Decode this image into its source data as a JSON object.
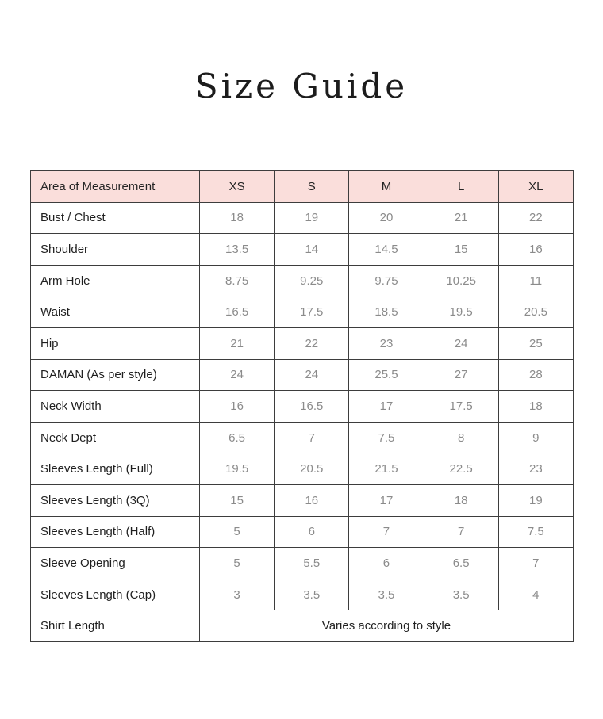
{
  "page": {
    "title": "Size Guide"
  },
  "colors": {
    "header_bg": "#fadedb",
    "border": "#3d3d3d",
    "label_text": "#1f1f1f",
    "value_text": "#8b8b8b",
    "background": "#ffffff"
  },
  "table": {
    "header": {
      "area_label": "Area of Measurement",
      "sizes": [
        "XS",
        "S",
        "M",
        "L",
        "XL"
      ]
    },
    "rows": [
      {
        "label": "Bust / Chest",
        "values": [
          "18",
          "19",
          "20",
          "21",
          "22"
        ]
      },
      {
        "label": "Shoulder",
        "values": [
          "13.5",
          "14",
          "14.5",
          "15",
          "16"
        ]
      },
      {
        "label": "Arm Hole",
        "values": [
          "8.75",
          "9.25",
          "9.75",
          "10.25",
          "11"
        ]
      },
      {
        "label": "Waist",
        "values": [
          "16.5",
          "17.5",
          "18.5",
          "19.5",
          "20.5"
        ]
      },
      {
        "label": "Hip",
        "values": [
          "21",
          "22",
          "23",
          "24",
          "25"
        ]
      },
      {
        "label": "DAMAN (As per style)",
        "values": [
          "24",
          "24",
          "25.5",
          "27",
          "28"
        ]
      },
      {
        "label": "Neck Width",
        "values": [
          "16",
          "16.5",
          "17",
          "17.5",
          "18"
        ]
      },
      {
        "label": "Neck Dept",
        "values": [
          "6.5",
          "7",
          "7.5",
          "8",
          "9"
        ]
      },
      {
        "label": "Sleeves Length (Full)",
        "values": [
          "19.5",
          "20.5",
          "21.5",
          "22.5",
          "23"
        ]
      },
      {
        "label": "Sleeves Length (3Q)",
        "values": [
          "15",
          "16",
          "17",
          "18",
          "19"
        ]
      },
      {
        "label": "Sleeves Length (Half)",
        "values": [
          "5",
          "6",
          "7",
          "7",
          "7.5"
        ]
      },
      {
        "label": "Sleeve Opening",
        "values": [
          "5",
          "5.5",
          "6",
          "6.5",
          "7"
        ]
      },
      {
        "label": "Sleeves Length (Cap)",
        "values": [
          "3",
          "3.5",
          "3.5",
          "3.5",
          "4"
        ]
      }
    ],
    "footer_row": {
      "label": "Shirt Length",
      "value": "Varies according to style"
    }
  }
}
